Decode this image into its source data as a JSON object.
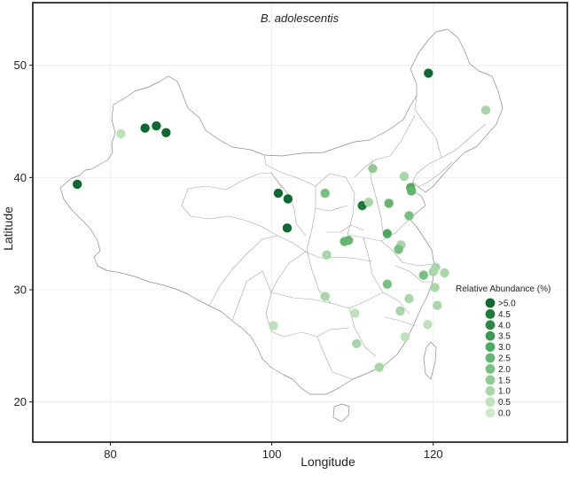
{
  "map": {
    "title": "B. adolescentis",
    "xlabel": "Longitude",
    "ylabel": "Latitude",
    "x_ticks": [
      80,
      100,
      120
    ],
    "y_ticks": [
      20,
      30,
      40,
      50
    ],
    "xlim": [
      70.5,
      136.5
    ],
    "ylim": [
      16.5,
      55.5
    ],
    "grid": true
  },
  "legend": {
    "title": "Relative Abundance (%)",
    "placement": "bottom-right",
    "levels": [
      {
        "label": ">5.0",
        "color": "#0b6b2e"
      },
      {
        "label": "4.5",
        "color": "#1b7a38"
      },
      {
        "label": "4.0",
        "color": "#2a8a44"
      },
      {
        "label": "3.5",
        "color": "#3b9a50"
      },
      {
        "label": "3.0",
        "color": "#4caa5c"
      },
      {
        "label": "2.5",
        "color": "#62b66d"
      },
      {
        "label": "2.0",
        "color": "#77c17e"
      },
      {
        "label": "1.5",
        "color": "#8fcc92"
      },
      {
        "label": "1.0",
        "color": "#a6d7a5"
      },
      {
        "label": "0.5",
        "color": "#bce2b9"
      },
      {
        "label": "0.0",
        "color": "#cfeacb"
      }
    ]
  },
  "samples": [
    {
      "lon": 75.9,
      "lat": 39.4,
      "abundance": 5.0
    },
    {
      "lon": 81.3,
      "lat": 43.9,
      "abundance": 0.6
    },
    {
      "lon": 84.3,
      "lat": 44.4,
      "abundance": 5.0
    },
    {
      "lon": 85.7,
      "lat": 44.6,
      "abundance": 5.0
    },
    {
      "lon": 86.9,
      "lat": 44.0,
      "abundance": 5.0
    },
    {
      "lon": 100.8,
      "lat": 38.6,
      "abundance": 5.0
    },
    {
      "lon": 102.0,
      "lat": 38.1,
      "abundance": 5.0
    },
    {
      "lon": 101.9,
      "lat": 35.5,
      "abundance": 5.0
    },
    {
      "lon": 119.4,
      "lat": 49.3,
      "abundance": 5.0
    },
    {
      "lon": 126.5,
      "lat": 46.0,
      "abundance": 1.2
    },
    {
      "lon": 106.6,
      "lat": 38.6,
      "abundance": 2.0
    },
    {
      "lon": 111.2,
      "lat": 37.5,
      "abundance": 4.5
    },
    {
      "lon": 112.0,
      "lat": 37.8,
      "abundance": 1.2
    },
    {
      "lon": 112.5,
      "lat": 40.8,
      "abundance": 1.5
    },
    {
      "lon": 114.5,
      "lat": 37.7,
      "abundance": 2.5
    },
    {
      "lon": 116.4,
      "lat": 40.1,
      "abundance": 1.0
    },
    {
      "lon": 117.2,
      "lat": 39.1,
      "abundance": 3.0
    },
    {
      "lon": 117.3,
      "lat": 38.8,
      "abundance": 2.5
    },
    {
      "lon": 117.0,
      "lat": 36.6,
      "abundance": 2.0
    },
    {
      "lon": 109.0,
      "lat": 34.3,
      "abundance": 2.5
    },
    {
      "lon": 109.5,
      "lat": 34.4,
      "abundance": 2.5
    },
    {
      "lon": 114.3,
      "lat": 35.0,
      "abundance": 3.0
    },
    {
      "lon": 106.8,
      "lat": 33.1,
      "abundance": 1.0
    },
    {
      "lon": 116.0,
      "lat": 34.0,
      "abundance": 1.2
    },
    {
      "lon": 115.7,
      "lat": 33.6,
      "abundance": 2.0
    },
    {
      "lon": 118.8,
      "lat": 31.3,
      "abundance": 2.0
    },
    {
      "lon": 120.3,
      "lat": 32.0,
      "abundance": 1.0
    },
    {
      "lon": 121.4,
      "lat": 31.5,
      "abundance": 1.2
    },
    {
      "lon": 120.0,
      "lat": 31.6,
      "abundance": 1.2
    },
    {
      "lon": 120.2,
      "lat": 30.2,
      "abundance": 1.2
    },
    {
      "lon": 114.3,
      "lat": 30.5,
      "abundance": 2.0
    },
    {
      "lon": 106.6,
      "lat": 29.4,
      "abundance": 1.0
    },
    {
      "lon": 117.0,
      "lat": 29.2,
      "abundance": 1.2
    },
    {
      "lon": 115.9,
      "lat": 28.1,
      "abundance": 1.2
    },
    {
      "lon": 120.5,
      "lat": 28.6,
      "abundance": 1.2
    },
    {
      "lon": 110.3,
      "lat": 27.9,
      "abundance": 0.6
    },
    {
      "lon": 100.2,
      "lat": 26.8,
      "abundance": 0.6
    },
    {
      "lon": 119.3,
      "lat": 26.9,
      "abundance": 0.6
    },
    {
      "lon": 116.5,
      "lat": 25.8,
      "abundance": 0.6
    },
    {
      "lon": 110.5,
      "lat": 25.2,
      "abundance": 1.0
    },
    {
      "lon": 113.3,
      "lat": 23.1,
      "abundance": 1.0
    }
  ]
}
